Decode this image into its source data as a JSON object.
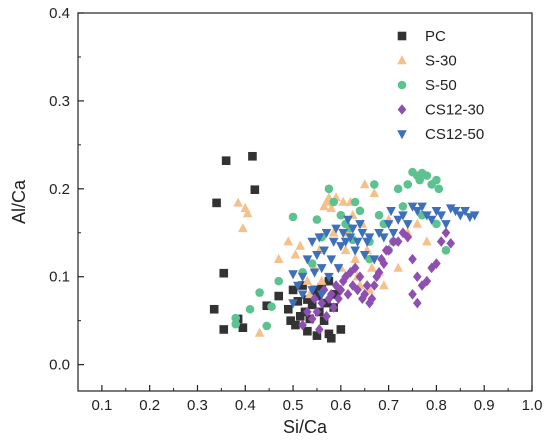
{
  "chart_data": {
    "type": "scatter",
    "xlabel": "Si/Ca",
    "ylabel": "Al/Ca",
    "xlim": [
      0.05,
      1.0
    ],
    "ylim": [
      -0.03,
      0.4
    ],
    "xticks": [
      "0.1",
      "0.2",
      "0.3",
      "0.4",
      "0.5",
      "0.6",
      "0.7",
      "0.8",
      "0.9",
      "1.0"
    ],
    "xtick_values": [
      0.1,
      0.2,
      0.3,
      0.4,
      0.5,
      0.6,
      0.7,
      0.8,
      0.9,
      1.0
    ],
    "yticks": [
      "0.0",
      "0.1",
      "0.2",
      "0.3",
      "0.4"
    ],
    "ytick_values": [
      0.0,
      0.1,
      0.2,
      0.3,
      0.4
    ],
    "grid": false,
    "legend_position": "top-right",
    "series": [
      {
        "name": "PC",
        "marker": "square",
        "color": "#333333",
        "points": [
          [
            0.36,
            0.232
          ],
          [
            0.415,
            0.237
          ],
          [
            0.42,
            0.199
          ],
          [
            0.34,
            0.184
          ],
          [
            0.355,
            0.104
          ],
          [
            0.335,
            0.063
          ],
          [
            0.355,
            0.04
          ],
          [
            0.385,
            0.052
          ],
          [
            0.395,
            0.042
          ],
          [
            0.445,
            0.067
          ],
          [
            0.47,
            0.078
          ],
          [
            0.49,
            0.063
          ],
          [
            0.495,
            0.05
          ],
          [
            0.505,
            0.045
          ],
          [
            0.51,
            0.072
          ],
          [
            0.515,
            0.055
          ],
          [
            0.52,
            0.09
          ],
          [
            0.525,
            0.06
          ],
          [
            0.53,
            0.038
          ],
          [
            0.535,
            0.052
          ],
          [
            0.54,
            0.068
          ],
          [
            0.545,
            0.085
          ],
          [
            0.55,
            0.033
          ],
          [
            0.55,
            0.078
          ],
          [
            0.555,
            0.06
          ],
          [
            0.56,
            0.088
          ],
          [
            0.565,
            0.05
          ],
          [
            0.57,
            0.07
          ],
          [
            0.575,
            0.095
          ],
          [
            0.575,
            0.035
          ],
          [
            0.58,
            0.03
          ],
          [
            0.585,
            0.065
          ],
          [
            0.59,
            0.08
          ],
          [
            0.6,
            0.04
          ],
          [
            0.53,
            0.074
          ],
          [
            0.5,
            0.085
          ]
        ]
      },
      {
        "name": "S-30",
        "marker": "triangle-up",
        "color": "#f5c08a",
        "points": [
          [
            0.385,
            0.184
          ],
          [
            0.4,
            0.178
          ],
          [
            0.405,
            0.172
          ],
          [
            0.395,
            0.155
          ],
          [
            0.43,
            0.036
          ],
          [
            0.47,
            0.12
          ],
          [
            0.49,
            0.14
          ],
          [
            0.505,
            0.125
          ],
          [
            0.515,
            0.135
          ],
          [
            0.53,
            0.095
          ],
          [
            0.535,
            0.08
          ],
          [
            0.545,
            0.11
          ],
          [
            0.555,
            0.13
          ],
          [
            0.56,
            0.095
          ],
          [
            0.565,
            0.18
          ],
          [
            0.57,
            0.185
          ],
          [
            0.575,
            0.19
          ],
          [
            0.58,
            0.178
          ],
          [
            0.585,
            0.15
          ],
          [
            0.59,
            0.19
          ],
          [
            0.6,
            0.11
          ],
          [
            0.605,
            0.185
          ],
          [
            0.61,
            0.13
          ],
          [
            0.615,
            0.15
          ],
          [
            0.62,
            0.185
          ],
          [
            0.625,
            0.17
          ],
          [
            0.63,
            0.12
          ],
          [
            0.635,
            0.1
          ],
          [
            0.64,
            0.09
          ],
          [
            0.645,
            0.16
          ],
          [
            0.65,
            0.205
          ],
          [
            0.655,
            0.13
          ],
          [
            0.66,
            0.085
          ],
          [
            0.665,
            0.11
          ],
          [
            0.67,
            0.195
          ],
          [
            0.68,
            0.105
          ],
          [
            0.69,
            0.09
          ],
          [
            0.7,
            0.165
          ],
          [
            0.71,
            0.14
          ],
          [
            0.72,
            0.11
          ],
          [
            0.74,
            0.15
          ],
          [
            0.76,
            0.16
          ],
          [
            0.78,
            0.14
          ]
        ]
      },
      {
        "name": "S-50",
        "marker": "circle",
        "color": "#5cc28f",
        "points": [
          [
            0.38,
            0.046
          ],
          [
            0.38,
            0.053
          ],
          [
            0.41,
            0.063
          ],
          [
            0.43,
            0.082
          ],
          [
            0.445,
            0.044
          ],
          [
            0.455,
            0.066
          ],
          [
            0.47,
            0.095
          ],
          [
            0.5,
            0.168
          ],
          [
            0.52,
            0.105
          ],
          [
            0.54,
            0.115
          ],
          [
            0.55,
            0.165
          ],
          [
            0.56,
            0.145
          ],
          [
            0.575,
            0.2
          ],
          [
            0.585,
            0.185
          ],
          [
            0.6,
            0.17
          ],
          [
            0.61,
            0.16
          ],
          [
            0.62,
            0.155
          ],
          [
            0.625,
            0.142
          ],
          [
            0.63,
            0.185
          ],
          [
            0.64,
            0.175
          ],
          [
            0.66,
            0.14
          ],
          [
            0.67,
            0.205
          ],
          [
            0.68,
            0.17
          ],
          [
            0.69,
            0.16
          ],
          [
            0.7,
            0.13
          ],
          [
            0.72,
            0.2
          ],
          [
            0.73,
            0.18
          ],
          [
            0.74,
            0.205
          ],
          [
            0.75,
            0.219
          ],
          [
            0.76,
            0.215
          ],
          [
            0.765,
            0.21
          ],
          [
            0.77,
            0.218
          ],
          [
            0.78,
            0.215
          ],
          [
            0.79,
            0.205
          ],
          [
            0.8,
            0.21
          ],
          [
            0.805,
            0.2
          ],
          [
            0.77,
            0.17
          ],
          [
            0.8,
            0.16
          ],
          [
            0.82,
            0.13
          ],
          [
            0.66,
            0.12
          ],
          [
            0.71,
            0.14
          ]
        ]
      },
      {
        "name": "CS12-30",
        "marker": "diamond",
        "color": "#8e4fb0",
        "points": [
          [
            0.52,
            0.045
          ],
          [
            0.53,
            0.06
          ],
          [
            0.54,
            0.052
          ],
          [
            0.545,
            0.075
          ],
          [
            0.55,
            0.06
          ],
          [
            0.555,
            0.04
          ],
          [
            0.56,
            0.07
          ],
          [
            0.565,
            0.085
          ],
          [
            0.57,
            0.055
          ],
          [
            0.575,
            0.075
          ],
          [
            0.58,
            0.08
          ],
          [
            0.585,
            0.065
          ],
          [
            0.59,
            0.09
          ],
          [
            0.595,
            0.075
          ],
          [
            0.6,
            0.085
          ],
          [
            0.605,
            0.095
          ],
          [
            0.61,
            0.1
          ],
          [
            0.615,
            0.08
          ],
          [
            0.62,
            0.105
          ],
          [
            0.625,
            0.09
          ],
          [
            0.63,
            0.11
          ],
          [
            0.635,
            0.085
          ],
          [
            0.64,
            0.1
          ],
          [
            0.645,
            0.075
          ],
          [
            0.65,
            0.08
          ],
          [
            0.655,
            0.09
          ],
          [
            0.66,
            0.07
          ],
          [
            0.665,
            0.075
          ],
          [
            0.67,
            0.09
          ],
          [
            0.675,
            0.1
          ],
          [
            0.68,
            0.105
          ],
          [
            0.685,
            0.12
          ],
          [
            0.69,
            0.115
          ],
          [
            0.695,
            0.13
          ],
          [
            0.7,
            0.13
          ],
          [
            0.71,
            0.14
          ],
          [
            0.72,
            0.14
          ],
          [
            0.73,
            0.15
          ],
          [
            0.74,
            0.145
          ],
          [
            0.75,
            0.12
          ],
          [
            0.76,
            0.1
          ],
          [
            0.77,
            0.09
          ],
          [
            0.78,
            0.095
          ],
          [
            0.79,
            0.11
          ],
          [
            0.8,
            0.115
          ],
          [
            0.81,
            0.14
          ],
          [
            0.82,
            0.15
          ],
          [
            0.83,
            0.138
          ],
          [
            0.75,
            0.08
          ],
          [
            0.76,
            0.07
          ]
        ]
      },
      {
        "name": "CS12-50",
        "marker": "triangle-down",
        "color": "#3d6fba",
        "points": [
          [
            0.5,
            0.103
          ],
          [
            0.51,
            0.09
          ],
          [
            0.52,
            0.1
          ],
          [
            0.53,
            0.12
          ],
          [
            0.54,
            0.14
          ],
          [
            0.545,
            0.105
          ],
          [
            0.55,
            0.125
          ],
          [
            0.555,
            0.145
          ],
          [
            0.56,
            0.11
          ],
          [
            0.565,
            0.13
          ],
          [
            0.57,
            0.15
          ],
          [
            0.575,
            0.1
          ],
          [
            0.58,
            0.12
          ],
          [
            0.585,
            0.14
          ],
          [
            0.59,
            0.155
          ],
          [
            0.595,
            0.11
          ],
          [
            0.6,
            0.135
          ],
          [
            0.605,
            0.15
          ],
          [
            0.61,
            0.14
          ],
          [
            0.615,
            0.165
          ],
          [
            0.62,
            0.145
          ],
          [
            0.625,
            0.155
          ],
          [
            0.63,
            0.13
          ],
          [
            0.635,
            0.14
          ],
          [
            0.64,
            0.16
          ],
          [
            0.645,
            0.15
          ],
          [
            0.65,
            0.125
          ],
          [
            0.655,
            0.14
          ],
          [
            0.66,
            0.145
          ],
          [
            0.67,
            0.12
          ],
          [
            0.68,
            0.15
          ],
          [
            0.69,
            0.145
          ],
          [
            0.7,
            0.16
          ],
          [
            0.705,
            0.175
          ],
          [
            0.71,
            0.15
          ],
          [
            0.72,
            0.165
          ],
          [
            0.73,
            0.17
          ],
          [
            0.74,
            0.16
          ],
          [
            0.75,
            0.18
          ],
          [
            0.76,
            0.175
          ],
          [
            0.77,
            0.18
          ],
          [
            0.78,
            0.17
          ],
          [
            0.79,
            0.165
          ],
          [
            0.8,
            0.175
          ],
          [
            0.81,
            0.17
          ],
          [
            0.82,
            0.16
          ],
          [
            0.83,
            0.178
          ],
          [
            0.84,
            0.175
          ],
          [
            0.85,
            0.17
          ],
          [
            0.86,
            0.175
          ],
          [
            0.87,
            0.168
          ],
          [
            0.88,
            0.17
          ],
          [
            0.5,
            0.07
          ],
          [
            0.52,
            0.08
          ],
          [
            0.54,
            0.085
          ],
          [
            0.56,
            0.08
          ]
        ]
      }
    ]
  }
}
